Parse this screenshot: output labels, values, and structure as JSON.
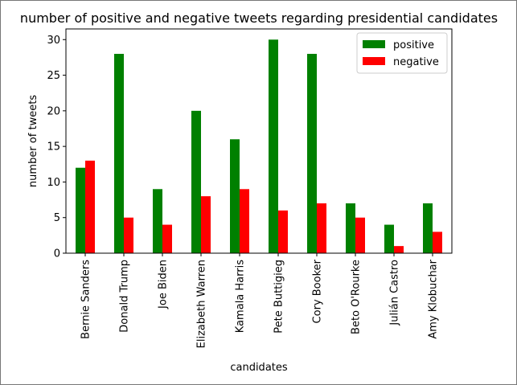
{
  "chart_data": {
    "type": "bar",
    "title": "number of positive and negative tweets regarding presidential candidates",
    "xlabel": "candidates",
    "ylabel": "number of tweets",
    "categories": [
      "Bernie Sanders",
      "Donald Trump",
      "Joe Biden",
      "Elizabeth Warren",
      "Kamala Harris",
      "Pete Buttigieg",
      "Cory Booker",
      "Beto O'Rourke",
      "Julián Castro",
      "Amy Klobuchar"
    ],
    "series": [
      {
        "name": "positive",
        "color": "#008000",
        "values": [
          12,
          28,
          9,
          20,
          16,
          30,
          28,
          7,
          4,
          7
        ]
      },
      {
        "name": "negative",
        "color": "#ff0000",
        "values": [
          13,
          5,
          4,
          8,
          9,
          6,
          7,
          5,
          1,
          3
        ]
      }
    ],
    "yticks": [
      0,
      5,
      10,
      15,
      20,
      25,
      30
    ],
    "ylim": [
      0,
      31.5
    ],
    "grid": false,
    "legend": "top-right"
  }
}
